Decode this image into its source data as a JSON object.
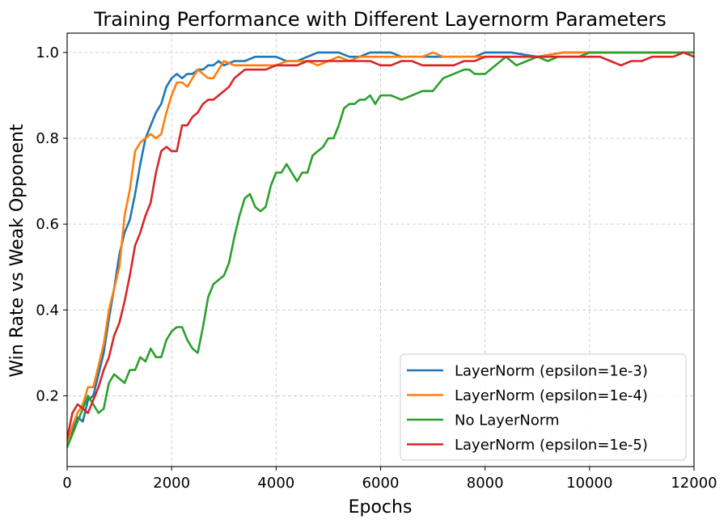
{
  "chart_data": {
    "type": "line",
    "title": "Training Performance with Different Layernorm Parameters",
    "xlabel": "Epochs",
    "ylabel": "Win Rate vs Weak Opponent",
    "xlim": [
      0,
      12000
    ],
    "ylim": [
      0.035,
      1.045
    ],
    "xticks": [
      0,
      2000,
      4000,
      6000,
      8000,
      10000,
      12000
    ],
    "yticks": [
      0.2,
      0.4,
      0.6,
      0.8,
      1.0
    ],
    "xtick_labels": [
      "0",
      "2000",
      "4000",
      "6000",
      "8000",
      "10000",
      "12000"
    ],
    "ytick_labels": [
      "0.2",
      "0.4",
      "0.6",
      "0.8",
      "1.0"
    ],
    "grid": true,
    "legend_position": "lower-right",
    "series": [
      {
        "name": "LayerNorm (epsilon=1e-3)",
        "color": "#1f77b4",
        "points": [
          [
            0,
            0.08
          ],
          [
            100,
            0.12
          ],
          [
            200,
            0.15
          ],
          [
            300,
            0.14
          ],
          [
            400,
            0.19
          ],
          [
            500,
            0.2
          ],
          [
            600,
            0.25
          ],
          [
            700,
            0.3
          ],
          [
            800,
            0.38
          ],
          [
            900,
            0.45
          ],
          [
            1000,
            0.53
          ],
          [
            1100,
            0.58
          ],
          [
            1200,
            0.61
          ],
          [
            1300,
            0.67
          ],
          [
            1400,
            0.74
          ],
          [
            1500,
            0.8
          ],
          [
            1600,
            0.83
          ],
          [
            1700,
            0.86
          ],
          [
            1800,
            0.88
          ],
          [
            1900,
            0.92
          ],
          [
            2000,
            0.94
          ],
          [
            2100,
            0.95
          ],
          [
            2200,
            0.94
          ],
          [
            2300,
            0.95
          ],
          [
            2400,
            0.95
          ],
          [
            2500,
            0.96
          ],
          [
            2600,
            0.96
          ],
          [
            2700,
            0.97
          ],
          [
            2800,
            0.97
          ],
          [
            2900,
            0.98
          ],
          [
            3000,
            0.97
          ],
          [
            3200,
            0.98
          ],
          [
            3400,
            0.98
          ],
          [
            3600,
            0.99
          ],
          [
            3800,
            0.99
          ],
          [
            4000,
            0.99
          ],
          [
            4200,
            0.98
          ],
          [
            4400,
            0.98
          ],
          [
            4600,
            0.99
          ],
          [
            4800,
            1.0
          ],
          [
            5000,
            1.0
          ],
          [
            5200,
            1.0
          ],
          [
            5400,
            0.99
          ],
          [
            5600,
            0.99
          ],
          [
            5800,
            1.0
          ],
          [
            6000,
            1.0
          ],
          [
            6200,
            1.0
          ],
          [
            6400,
            0.99
          ],
          [
            6600,
            0.99
          ],
          [
            6800,
            0.99
          ],
          [
            7000,
            0.99
          ],
          [
            7200,
            0.99
          ],
          [
            7400,
            0.99
          ],
          [
            7600,
            0.99
          ],
          [
            7800,
            0.99
          ],
          [
            8000,
            1.0
          ],
          [
            8500,
            1.0
          ],
          [
            9000,
            0.99
          ],
          [
            9500,
            1.0
          ],
          [
            10000,
            1.0
          ],
          [
            10500,
            1.0
          ],
          [
            11000,
            1.0
          ],
          [
            11500,
            1.0
          ],
          [
            12000,
            1.0
          ]
        ]
      },
      {
        "name": "LayerNorm (epsilon=1e-4)",
        "color": "#ff7f0e",
        "points": [
          [
            0,
            0.09
          ],
          [
            100,
            0.13
          ],
          [
            200,
            0.16
          ],
          [
            300,
            0.18
          ],
          [
            400,
            0.22
          ],
          [
            500,
            0.22
          ],
          [
            600,
            0.27
          ],
          [
            700,
            0.32
          ],
          [
            800,
            0.4
          ],
          [
            900,
            0.45
          ],
          [
            1000,
            0.5
          ],
          [
            1100,
            0.62
          ],
          [
            1200,
            0.68
          ],
          [
            1300,
            0.77
          ],
          [
            1400,
            0.79
          ],
          [
            1500,
            0.8
          ],
          [
            1600,
            0.81
          ],
          [
            1700,
            0.8
          ],
          [
            1800,
            0.81
          ],
          [
            1900,
            0.86
          ],
          [
            2000,
            0.9
          ],
          [
            2100,
            0.93
          ],
          [
            2200,
            0.93
          ],
          [
            2300,
            0.92
          ],
          [
            2400,
            0.94
          ],
          [
            2500,
            0.96
          ],
          [
            2600,
            0.95
          ],
          [
            2700,
            0.94
          ],
          [
            2800,
            0.94
          ],
          [
            2900,
            0.96
          ],
          [
            3000,
            0.98
          ],
          [
            3200,
            0.97
          ],
          [
            3400,
            0.97
          ],
          [
            3600,
            0.97
          ],
          [
            3800,
            0.97
          ],
          [
            4000,
            0.97
          ],
          [
            4200,
            0.98
          ],
          [
            4400,
            0.98
          ],
          [
            4600,
            0.98
          ],
          [
            4800,
            0.97
          ],
          [
            5000,
            0.98
          ],
          [
            5200,
            0.99
          ],
          [
            5400,
            0.98
          ],
          [
            5600,
            0.99
          ],
          [
            5800,
            0.99
          ],
          [
            6000,
            0.99
          ],
          [
            6200,
            0.99
          ],
          [
            6400,
            0.99
          ],
          [
            6600,
            0.99
          ],
          [
            6800,
            0.99
          ],
          [
            7000,
            1.0
          ],
          [
            7200,
            0.99
          ],
          [
            7400,
            0.99
          ],
          [
            7600,
            0.99
          ],
          [
            7800,
            0.99
          ],
          [
            8000,
            0.99
          ],
          [
            8500,
            0.99
          ],
          [
            9000,
            0.99
          ],
          [
            9500,
            1.0
          ],
          [
            10000,
            1.0
          ],
          [
            10500,
            1.0
          ],
          [
            11000,
            1.0
          ],
          [
            11500,
            1.0
          ],
          [
            12000,
            1.0
          ]
        ]
      },
      {
        "name": "No LayerNorm",
        "color": "#2ca02c",
        "points": [
          [
            0,
            0.08
          ],
          [
            100,
            0.11
          ],
          [
            200,
            0.14
          ],
          [
            300,
            0.17
          ],
          [
            400,
            0.2
          ],
          [
            500,
            0.18
          ],
          [
            600,
            0.16
          ],
          [
            700,
            0.17
          ],
          [
            800,
            0.23
          ],
          [
            900,
            0.25
          ],
          [
            1000,
            0.24
          ],
          [
            1100,
            0.23
          ],
          [
            1200,
            0.26
          ],
          [
            1300,
            0.26
          ],
          [
            1400,
            0.29
          ],
          [
            1500,
            0.28
          ],
          [
            1600,
            0.31
          ],
          [
            1700,
            0.29
          ],
          [
            1800,
            0.29
          ],
          [
            1900,
            0.33
          ],
          [
            2000,
            0.35
          ],
          [
            2100,
            0.36
          ],
          [
            2200,
            0.36
          ],
          [
            2300,
            0.33
          ],
          [
            2400,
            0.31
          ],
          [
            2500,
            0.3
          ],
          [
            2600,
            0.36
          ],
          [
            2700,
            0.43
          ],
          [
            2800,
            0.46
          ],
          [
            2900,
            0.47
          ],
          [
            3000,
            0.48
          ],
          [
            3100,
            0.51
          ],
          [
            3200,
            0.57
          ],
          [
            3300,
            0.62
          ],
          [
            3400,
            0.66
          ],
          [
            3500,
            0.67
          ],
          [
            3600,
            0.64
          ],
          [
            3700,
            0.63
          ],
          [
            3800,
            0.64
          ],
          [
            3900,
            0.69
          ],
          [
            4000,
            0.72
          ],
          [
            4100,
            0.72
          ],
          [
            4200,
            0.74
          ],
          [
            4300,
            0.72
          ],
          [
            4400,
            0.7
          ],
          [
            4500,
            0.72
          ],
          [
            4600,
            0.72
          ],
          [
            4700,
            0.76
          ],
          [
            4800,
            0.77
          ],
          [
            4900,
            0.78
          ],
          [
            5000,
            0.8
          ],
          [
            5100,
            0.8
          ],
          [
            5200,
            0.83
          ],
          [
            5300,
            0.87
          ],
          [
            5400,
            0.88
          ],
          [
            5500,
            0.88
          ],
          [
            5600,
            0.89
          ],
          [
            5700,
            0.89
          ],
          [
            5800,
            0.9
          ],
          [
            5900,
            0.88
          ],
          [
            6000,
            0.9
          ],
          [
            6200,
            0.9
          ],
          [
            6400,
            0.89
          ],
          [
            6600,
            0.9
          ],
          [
            6800,
            0.91
          ],
          [
            7000,
            0.91
          ],
          [
            7200,
            0.94
          ],
          [
            7400,
            0.95
          ],
          [
            7600,
            0.96
          ],
          [
            7700,
            0.96
          ],
          [
            7800,
            0.95
          ],
          [
            8000,
            0.95
          ],
          [
            8200,
            0.97
          ],
          [
            8400,
            0.99
          ],
          [
            8600,
            0.97
          ],
          [
            8800,
            0.98
          ],
          [
            9000,
            0.99
          ],
          [
            9200,
            0.98
          ],
          [
            9400,
            0.99
          ],
          [
            9600,
            0.99
          ],
          [
            9800,
            0.99
          ],
          [
            10000,
            1.0
          ],
          [
            10500,
            1.0
          ],
          [
            11000,
            1.0
          ],
          [
            11500,
            1.0
          ],
          [
            12000,
            1.0
          ]
        ]
      },
      {
        "name": "LayerNorm (epsilon=1e-5)",
        "color": "#d62728",
        "points": [
          [
            0,
            0.1
          ],
          [
            100,
            0.16
          ],
          [
            200,
            0.18
          ],
          [
            300,
            0.17
          ],
          [
            400,
            0.16
          ],
          [
            500,
            0.19
          ],
          [
            600,
            0.22
          ],
          [
            700,
            0.26
          ],
          [
            800,
            0.29
          ],
          [
            900,
            0.34
          ],
          [
            1000,
            0.37
          ],
          [
            1100,
            0.42
          ],
          [
            1200,
            0.48
          ],
          [
            1300,
            0.55
          ],
          [
            1400,
            0.58
          ],
          [
            1500,
            0.62
          ],
          [
            1600,
            0.65
          ],
          [
            1700,
            0.72
          ],
          [
            1800,
            0.77
          ],
          [
            1900,
            0.78
          ],
          [
            2000,
            0.77
          ],
          [
            2100,
            0.77
          ],
          [
            2200,
            0.83
          ],
          [
            2300,
            0.83
          ],
          [
            2400,
            0.85
          ],
          [
            2500,
            0.86
          ],
          [
            2600,
            0.88
          ],
          [
            2700,
            0.89
          ],
          [
            2800,
            0.89
          ],
          [
            2900,
            0.9
          ],
          [
            3000,
            0.91
          ],
          [
            3100,
            0.92
          ],
          [
            3200,
            0.94
          ],
          [
            3400,
            0.96
          ],
          [
            3600,
            0.96
          ],
          [
            3800,
            0.96
          ],
          [
            4000,
            0.97
          ],
          [
            4200,
            0.97
          ],
          [
            4400,
            0.97
          ],
          [
            4600,
            0.98
          ],
          [
            4800,
            0.98
          ],
          [
            5000,
            0.98
          ],
          [
            5200,
            0.98
          ],
          [
            5400,
            0.98
          ],
          [
            5600,
            0.98
          ],
          [
            5800,
            0.98
          ],
          [
            6000,
            0.97
          ],
          [
            6200,
            0.97
          ],
          [
            6400,
            0.98
          ],
          [
            6600,
            0.98
          ],
          [
            6800,
            0.97
          ],
          [
            7000,
            0.97
          ],
          [
            7200,
            0.97
          ],
          [
            7400,
            0.97
          ],
          [
            7600,
            0.98
          ],
          [
            7800,
            0.98
          ],
          [
            8000,
            0.99
          ],
          [
            8200,
            0.99
          ],
          [
            8400,
            0.99
          ],
          [
            8600,
            0.99
          ],
          [
            8800,
            0.99
          ],
          [
            9000,
            0.99
          ],
          [
            9200,
            0.99
          ],
          [
            9400,
            0.99
          ],
          [
            9600,
            0.99
          ],
          [
            9800,
            0.99
          ],
          [
            10000,
            0.99
          ],
          [
            10200,
            0.99
          ],
          [
            10400,
            0.98
          ],
          [
            10600,
            0.97
          ],
          [
            10800,
            0.98
          ],
          [
            11000,
            0.98
          ],
          [
            11200,
            0.99
          ],
          [
            11400,
            0.99
          ],
          [
            11600,
            0.99
          ],
          [
            11800,
            1.0
          ],
          [
            12000,
            0.99
          ]
        ]
      }
    ]
  }
}
